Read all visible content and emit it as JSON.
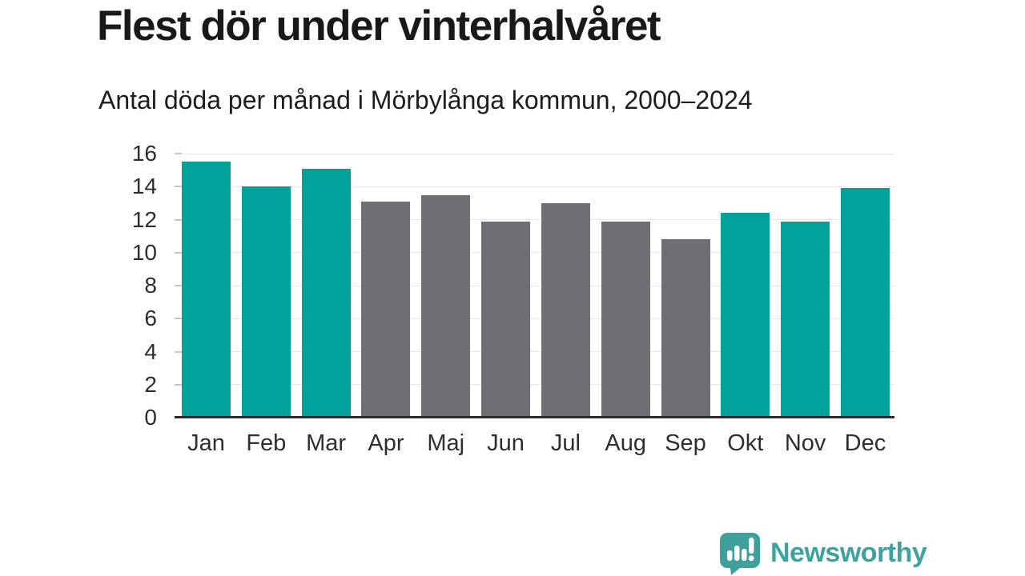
{
  "header": {
    "title": "Flest dör under vinterhalvåret",
    "subtitle": "Antal döda per månad i Mörbylånga kommun, 2000–2024"
  },
  "chart_data": {
    "type": "bar",
    "title": "Flest dör under vinterhalvåret",
    "subtitle": "Antal döda per månad i Mörbylånga kommun, 2000–2024",
    "categories": [
      "Jan",
      "Feb",
      "Mar",
      "Apr",
      "Maj",
      "Jun",
      "Jul",
      "Aug",
      "Sep",
      "Okt",
      "Nov",
      "Dec"
    ],
    "values": [
      15.5,
      14.0,
      15.1,
      13.1,
      13.5,
      11.9,
      13.0,
      11.9,
      10.8,
      12.4,
      11.9,
      13.9
    ],
    "bar_colors": [
      "#00a39b",
      "#00a39b",
      "#00a39b",
      "#6e6e74",
      "#6e6e74",
      "#6e6e74",
      "#6e6e74",
      "#6e6e74",
      "#6e6e74",
      "#00a39b",
      "#00a39b",
      "#00a39b"
    ],
    "highlight_color": "#00a39b",
    "base_color": "#6e6e74",
    "xlabel": "",
    "ylabel": "",
    "ylim": [
      0,
      16
    ],
    "yticks": [
      0,
      2,
      4,
      6,
      8,
      10,
      12,
      14,
      16
    ],
    "grid": "horizontal-only",
    "legend": "none",
    "gridline_color": "#e7e7e7",
    "axis_line_color": "#2b2b2b"
  },
  "footer": {
    "logo_text": "Newsworthy",
    "logo_icon": "newsworthy-speech-bubble-bar-chart-icon",
    "logo_text_color": "#3ea3a0",
    "logo_icon_color": "#3fa09b"
  }
}
